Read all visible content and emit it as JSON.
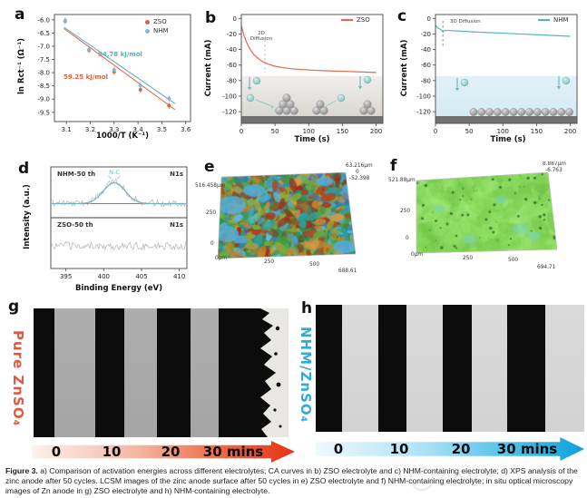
{
  "figure": {
    "background": "#ffffff"
  },
  "colors": {
    "zso": "#E2603F",
    "zso_curve": "#E0684C",
    "nhm": "#56B3C2",
    "nhm_point": "#7FB9DC",
    "nhm_line": "#5FA8C9",
    "xps_fit": "#6FB3C0",
    "noise_gray": "#B3B3B3",
    "label_red": "#E0593F",
    "label_blue": "#35A7D8",
    "arrow_red": "#E63317",
    "arrow_blue": "#0FA0DC"
  },
  "panels": {
    "a": {
      "label": "a"
    },
    "b": {
      "label": "b",
      "annotation_l1": "2D",
      "annotation_l2": "Diffusion"
    },
    "c": {
      "label": "c"
    },
    "d": {
      "label": "d"
    },
    "e": {
      "label": "e",
      "axis": {
        "y_max": "516.458μm",
        "y_mid": "250",
        "y_min": "0",
        "x_min": "0μm",
        "x_mid": "250",
        "x_next": "500",
        "x_max": "688.61",
        "z_max": "63.216μm",
        "z_mid": "0",
        "z_min": "-52.398"
      }
    },
    "f": {
      "label": "f",
      "axis": {
        "y_max": "521.88μm",
        "y_mid": "250",
        "y_min": "0",
        "x_min": "0μm",
        "x_mid": "250",
        "x_next": "500",
        "x_max": "694.71",
        "z_max": "8.887μm",
        "z_min": "-6.763"
      }
    },
    "g": {
      "label": "g",
      "side_label": "Pure ZnSO₄",
      "times": [
        "0",
        "10",
        "20",
        "30 mins"
      ]
    },
    "h": {
      "label": "h",
      "side_label": "NHM/ZnSO₄",
      "times": [
        "0",
        "10",
        "20",
        "30 mins"
      ]
    }
  },
  "chart_data": [
    {
      "panel": "a",
      "type": "scatter",
      "x": [
        3.095,
        3.195,
        3.3,
        3.41,
        3.53
      ],
      "series": [
        {
          "name": "ZSO",
          "color": "#E2603F",
          "values": [
            -6.05,
            -7.15,
            -7.97,
            -8.65,
            -9.25
          ],
          "fit_line": {
            "x1": 3.09,
            "y1": -6.33,
            "x2": 3.555,
            "y2": -9.4
          },
          "activation_energy": "59.25 kJ/mol"
        },
        {
          "name": "NHM",
          "color": "#7FB9DC",
          "line_color": "#5FA8C9",
          "values": [
            -6.03,
            -7.12,
            -7.9,
            -8.48,
            -8.98
          ],
          "fit_line": {
            "x1": 3.09,
            "y1": -6.28,
            "x2": 3.555,
            "y2": -9.17
          },
          "activation_energy": "54.78 kJ/mol"
        }
      ],
      "xlabel": "1000/T (K⁻¹)",
      "ylabel": "ln Rct⁻¹ (Ω⁻¹)",
      "xlim": [
        3.05,
        3.62
      ],
      "ylim": [
        -9.85,
        -5.8
      ],
      "xticks": [
        3.1,
        3.2,
        3.3,
        3.4,
        3.5,
        3.6
      ],
      "yticks": [
        -6.0,
        -6.5,
        -7.0,
        -7.5,
        -8.0,
        -8.5,
        -9.0,
        -9.5
      ],
      "grid": false,
      "legend_position": "top-right"
    },
    {
      "panel": "b",
      "type": "line",
      "series_name": "ZSO",
      "color": "#E0684C",
      "x": [
        0,
        2,
        4,
        7,
        10,
        14,
        18,
        23,
        28,
        34,
        40,
        50,
        60,
        75,
        90,
        110,
        130,
        150,
        175,
        200
      ],
      "y": [
        -9,
        -16,
        -22,
        -29,
        -35,
        -41,
        -46,
        -50,
        -53.5,
        -56.5,
        -59,
        -61.5,
        -63,
        -64.8,
        -65.8,
        -66.8,
        -67.5,
        -68,
        -68.8,
        -69.5
      ],
      "xlabel": "Time (s)",
      "ylabel": "Current (mA)",
      "xlim": [
        0,
        210
      ],
      "ylim": [
        -135,
        5
      ],
      "xticks": [
        0,
        50,
        100,
        150,
        200
      ],
      "yticks": [
        0,
        -20,
        -40,
        -60,
        -80,
        -100,
        -120
      ],
      "annotation": "2D Diffusion",
      "dashed_line_x": 35,
      "grid": false,
      "legend_position": "top-right"
    },
    {
      "panel": "c",
      "type": "line",
      "series_name": "NHM",
      "color": "#56B3C2",
      "x": [
        0,
        3,
        6,
        9,
        11,
        14,
        20,
        30,
        45,
        60,
        80,
        100,
        125,
        150,
        175,
        200
      ],
      "y": [
        -9,
        -12,
        -13.5,
        -15,
        -17.5,
        -15.5,
        -15.5,
        -16,
        -16.8,
        -17.5,
        -18.3,
        -19,
        -20,
        -21,
        -22,
        -23
      ],
      "xlabel": "Time (s)",
      "ylabel": "Current (mA)",
      "xlim": [
        0,
        210
      ],
      "ylim": [
        -135,
        5
      ],
      "xticks": [
        0,
        50,
        100,
        150,
        200
      ],
      "yticks": [
        0,
        -20,
        -40,
        -60,
        -80,
        -100,
        -120
      ],
      "annotation": "3D Diffusion",
      "dashed_line_x": 11,
      "grid": false,
      "legend_position": "top-right"
    },
    {
      "panel": "d",
      "type": "line",
      "xlabel": "Binding Energy (eV)",
      "ylabel": "Intensity (a.u.)",
      "xlim": [
        393,
        411
      ],
      "xticks": [
        395,
        400,
        405,
        410
      ],
      "spectra": [
        {
          "name": "NHM-50 th",
          "species": "N1s",
          "peak_label": "N-C",
          "peak_center_eV": 401.4,
          "peak_fwhm_eV": 3.4,
          "fit_color": "#6FB3C0",
          "noise_color": "#B3B3B3",
          "has_peak": true
        },
        {
          "name": "ZSO-50 th",
          "species": "N1s",
          "noise_color": "#B3B3B3",
          "has_peak": false
        }
      ]
    }
  ],
  "caption": {
    "label": "Figure 3.",
    "text": " a) Comparison of activation energies across different electrolytes; CA curves in b) ZSO electrolyte and c) NHM-containing electrolyte; d) XPS analysis of the zinc anode after 50 cycles. LCSM images of the zinc anode surface after 50 cycles in e) ZSO electrolyte and f) NHM-containing electrolyte; in situ optical microscopy images of Zn anode in g) ZSO electrolyte and h) NHM-containing electrolyte."
  },
  "watermark": {
    "text": "公众号"
  }
}
